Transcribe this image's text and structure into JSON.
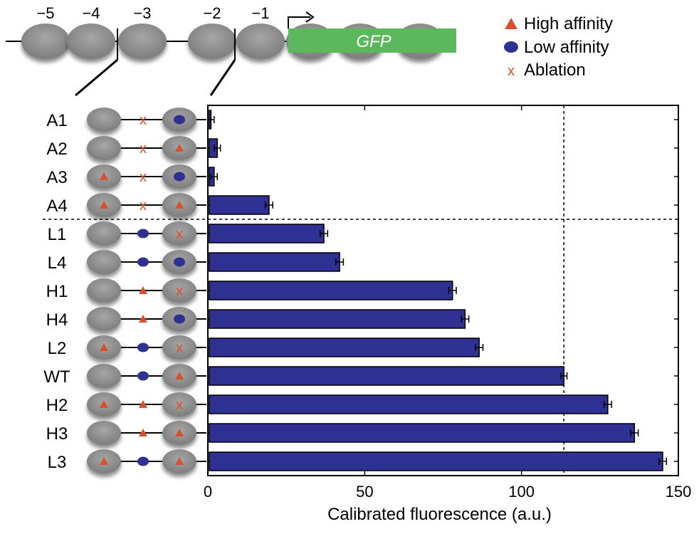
{
  "header": {
    "nucleosome_labels": [
      "−5",
      "−4",
      "−3",
      "−2",
      "−1"
    ],
    "gene_label": "GFP"
  },
  "legend": {
    "high": "High affinity",
    "low": "Low affinity",
    "ablation": "Ablation"
  },
  "colors": {
    "bar": "#2e3192",
    "high": "#d9512c",
    "low": "#2e3192",
    "ablation": "#d9512c",
    "nucleosome": "#8c8c8c",
    "gene": "#5cb85c"
  },
  "chart_data": {
    "type": "bar",
    "orientation": "horizontal",
    "categories": [
      "A1",
      "A2",
      "A3",
      "A4",
      "L1",
      "L4",
      "H1",
      "H4",
      "L2",
      "WT",
      "H2",
      "H3",
      "L3"
    ],
    "values": [
      1,
      3,
      2,
      19.5,
      37,
      42,
      78,
      82,
      86.5,
      113.5,
      127.5,
      136,
      145
    ],
    "errors": [
      1,
      1,
      1,
      1.2,
      1.2,
      1.2,
      1.2,
      1.2,
      1.2,
      1,
      1.2,
      1.2,
      1.2
    ],
    "xlabel": "Calibrated fluorescence (a.u.)",
    "xlim": [
      0,
      150
    ],
    "xticks": [
      0,
      50,
      100,
      150
    ],
    "reference_line_x": 113.5,
    "construct_sites": [
      [
        "none",
        "ablation",
        "low"
      ],
      [
        "none",
        "ablation",
        "high"
      ],
      [
        "high",
        "ablation",
        "low"
      ],
      [
        "high",
        "ablation",
        "high"
      ],
      [
        "none",
        "low",
        "ablation"
      ],
      [
        "none",
        "low",
        "low"
      ],
      [
        "none",
        "high",
        "ablation"
      ],
      [
        "none",
        "high",
        "low"
      ],
      [
        "high",
        "low",
        "ablation"
      ],
      [
        "none",
        "low",
        "high"
      ],
      [
        "high",
        "high",
        "ablation"
      ],
      [
        "none",
        "high",
        "high"
      ],
      [
        "high",
        "low",
        "high"
      ]
    ]
  }
}
